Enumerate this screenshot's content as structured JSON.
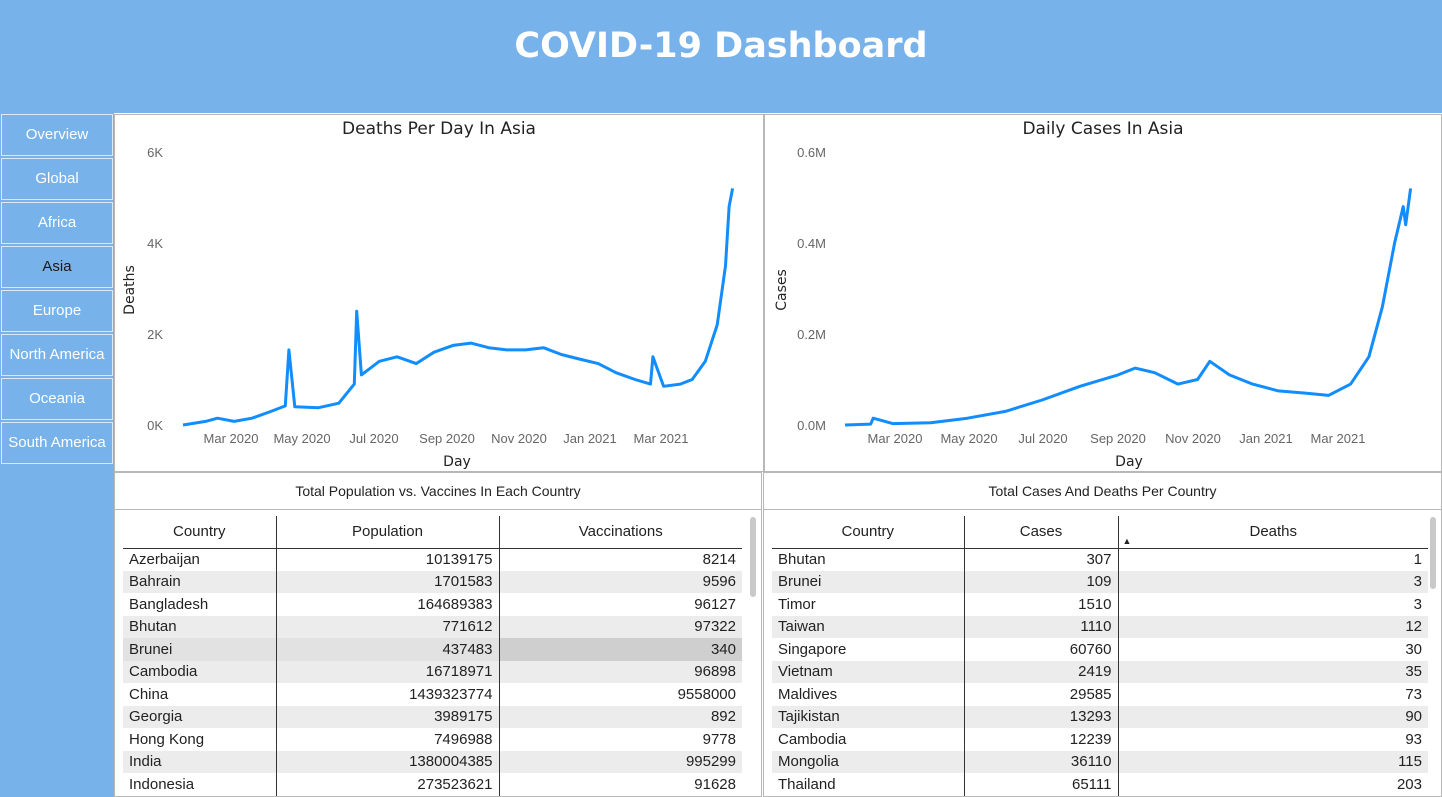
{
  "header": {
    "title": "COVID-19 Dashboard"
  },
  "sidebar": {
    "items": [
      {
        "label": "Overview"
      },
      {
        "label": "Global"
      },
      {
        "label": "Africa"
      },
      {
        "label": "Asia",
        "active": true
      },
      {
        "label": "Europe"
      },
      {
        "label": "North America"
      },
      {
        "label": "Oceania"
      },
      {
        "label": "South America"
      }
    ]
  },
  "colors": {
    "header": "#77b3ea",
    "line": "#118dff",
    "row_alt": "#ececec"
  },
  "charts": {
    "deaths": {
      "title": "Deaths Per Day In Asia",
      "ylabel": "Deaths",
      "xlabel": "Day",
      "yticks": [
        "6K",
        "4K",
        "2K",
        "0K"
      ],
      "xticks": [
        "Mar 2020",
        "May 2020",
        "Jul 2020",
        "Sep 2020",
        "Nov 2020",
        "Jan 2021",
        "Mar 2021"
      ]
    },
    "cases": {
      "title": "Daily Cases In Asia",
      "ylabel": "Cases",
      "xlabel": "Day",
      "yticks": [
        "0.6M",
        "0.4M",
        "0.2M",
        "0.0M"
      ],
      "xticks": [
        "Mar 2020",
        "May 2020",
        "Jul 2020",
        "Sep 2020",
        "Nov 2020",
        "Jan 2021",
        "Mar 2021"
      ]
    }
  },
  "chart_data": [
    {
      "type": "line",
      "title": "Deaths Per Day In Asia",
      "xlabel": "Day",
      "ylabel": "Deaths",
      "ylim": [
        0,
        6000
      ],
      "xlim": [
        "2020-01-22",
        "2021-04-30"
      ],
      "series": [
        {
          "x": [
            "2020-01-22",
            "2020-02-10",
            "2020-02-20",
            "2020-03-05",
            "2020-03-20",
            "2020-04-05",
            "2020-04-17",
            "2020-04-20",
            "2020-04-25",
            "2020-05-15",
            "2020-06-01",
            "2020-06-14",
            "2020-06-16",
            "2020-06-20",
            "2020-07-05",
            "2020-07-20",
            "2020-08-05",
            "2020-08-20",
            "2020-09-05",
            "2020-09-20",
            "2020-10-05",
            "2020-10-20",
            "2020-11-05",
            "2020-11-20",
            "2020-12-05",
            "2020-12-20",
            "2021-01-05",
            "2021-01-20",
            "2021-02-05",
            "2021-02-18",
            "2021-02-20",
            "2021-03-01",
            "2021-03-15",
            "2021-03-25",
            "2021-04-05",
            "2021-04-15",
            "2021-04-22",
            "2021-04-25",
            "2021-04-28"
          ],
          "y": [
            0,
            80,
            150,
            80,
            150,
            300,
            420,
            1650,
            400,
            380,
            480,
            900,
            2500,
            1100,
            1400,
            1500,
            1350,
            1600,
            1750,
            1800,
            1700,
            1650,
            1650,
            1700,
            1550,
            1450,
            1350,
            1150,
            1000,
            900,
            1500,
            850,
            900,
            1000,
            1400,
            2200,
            3500,
            4800,
            5200
          ]
        }
      ]
    },
    {
      "type": "line",
      "title": "Daily Cases In Asia",
      "xlabel": "Day",
      "ylabel": "Cases",
      "ylim": [
        0,
        600000
      ],
      "xlim": [
        "2020-01-22",
        "2021-04-30"
      ],
      "series": [
        {
          "x": [
            "2020-01-22",
            "2020-02-12",
            "2020-02-14",
            "2020-03-01",
            "2020-04-01",
            "2020-05-01",
            "2020-06-01",
            "2020-07-01",
            "2020-08-01",
            "2020-09-01",
            "2020-09-15",
            "2020-10-01",
            "2020-10-20",
            "2020-11-05",
            "2020-11-15",
            "2020-12-01",
            "2020-12-20",
            "2021-01-10",
            "2021-02-01",
            "2021-02-20",
            "2021-03-10",
            "2021-03-25",
            "2021-04-05",
            "2021-04-15",
            "2021-04-22",
            "2021-04-24",
            "2021-04-28"
          ],
          "y": [
            0,
            2000,
            15000,
            3000,
            5000,
            15000,
            30000,
            55000,
            85000,
            110000,
            125000,
            115000,
            90000,
            100000,
            140000,
            110000,
            90000,
            75000,
            70000,
            65000,
            90000,
            150000,
            260000,
            400000,
            480000,
            440000,
            520000
          ]
        }
      ]
    }
  ],
  "tables": {
    "vaccines": {
      "title": "Total Population vs. Vaccines In Each Country",
      "headers": [
        "Country",
        "Population",
        "Vaccinations"
      ],
      "rows": [
        [
          "Azerbaijan",
          "10139175",
          "8214"
        ],
        [
          "Bahrain",
          "1701583",
          "9596"
        ],
        [
          "Bangladesh",
          "164689383",
          "96127"
        ],
        [
          "Bhutan",
          "771612",
          "97322"
        ],
        [
          "Brunei",
          "437483",
          "340"
        ],
        [
          "Cambodia",
          "16718971",
          "96898"
        ],
        [
          "China",
          "1439323774",
          "9558000"
        ],
        [
          "Georgia",
          "3989175",
          "892"
        ],
        [
          "Hong Kong",
          "7496988",
          "9778"
        ],
        [
          "India",
          "1380004385",
          "995299"
        ],
        [
          "Indonesia",
          "273523621",
          "91628"
        ]
      ]
    },
    "cases_deaths": {
      "title": "Total Cases And Deaths Per Country",
      "headers": [
        "Country",
        "Cases",
        "Deaths"
      ],
      "sort_column": "Deaths",
      "rows": [
        [
          "Bhutan",
          "307",
          "1"
        ],
        [
          "Brunei",
          "109",
          "3"
        ],
        [
          "Timor",
          "1510",
          "3"
        ],
        [
          "Taiwan",
          "1110",
          "12"
        ],
        [
          "Singapore",
          "60760",
          "30"
        ],
        [
          "Vietnam",
          "2419",
          "35"
        ],
        [
          "Maldives",
          "29585",
          "73"
        ],
        [
          "Tajikistan",
          "13293",
          "90"
        ],
        [
          "Cambodia",
          "12239",
          "93"
        ],
        [
          "Mongolia",
          "36110",
          "115"
        ],
        [
          "Thailand",
          "65111",
          "203"
        ]
      ]
    }
  }
}
